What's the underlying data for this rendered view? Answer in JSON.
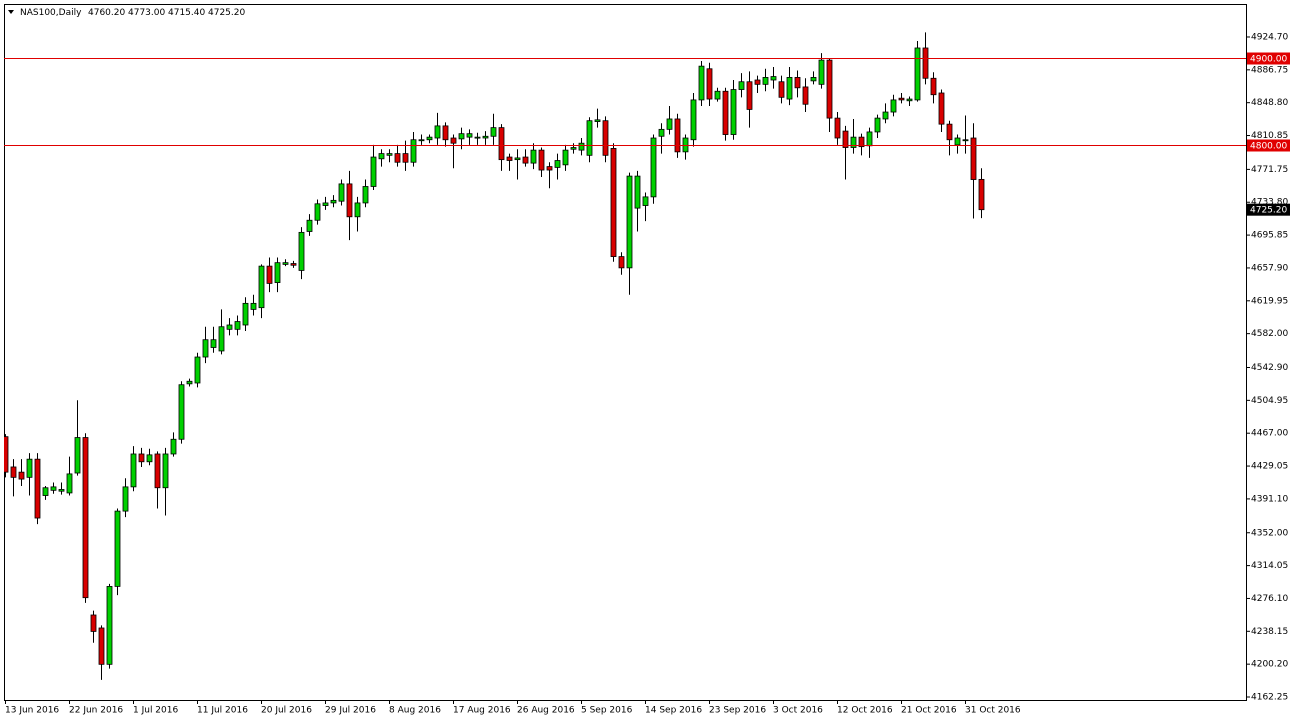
{
  "chart_data": {
    "type": "candlestick",
    "title": "NAS100,Daily",
    "ohlc_labels": [
      "4760.20",
      "4773.00",
      "4715.40",
      "4725.20"
    ],
    "categories": [
      "13 Jun 2016",
      null,
      null,
      null,
      null,
      null,
      null,
      null,
      "22 Jun 2016",
      null,
      null,
      null,
      null,
      null,
      null,
      null,
      "1 Jul 2016",
      null,
      null,
      null,
      null,
      null,
      null,
      null,
      "11 Jul 2016",
      null,
      null,
      null,
      null,
      null,
      null,
      null,
      "20 Jul 2016",
      null,
      null,
      null,
      null,
      null,
      null,
      null,
      "29 Jul 2016",
      null,
      null,
      null,
      null,
      null,
      null,
      null,
      "8 Aug 2016",
      null,
      null,
      null,
      null,
      null,
      null,
      null,
      "17 Aug 2016",
      null,
      null,
      null,
      null,
      null,
      null,
      null,
      "26 Aug 2016",
      null,
      null,
      null,
      null,
      null,
      null,
      null,
      "5 Sep 2016",
      null,
      null,
      null,
      null,
      null,
      null,
      null,
      "14 Sep 2016",
      null,
      null,
      null,
      null,
      null,
      null,
      null,
      "23 Sep 2016",
      null,
      null,
      null,
      null,
      null,
      null,
      null,
      "3 Oct 2016",
      null,
      null,
      null,
      null,
      null,
      null,
      null,
      "12 Oct 2016",
      null,
      null,
      null,
      null,
      null,
      null,
      null,
      "21 Oct 2016",
      null,
      null,
      null,
      null,
      null,
      null,
      null,
      "31 Oct 2016",
      null,
      null
    ],
    "open": [
      4463,
      4428,
      4422,
      4416,
      4437,
      4395,
      4401,
      4400,
      4398,
      4421,
      4462,
      4257,
      4242,
      4200,
      4290,
      4377,
      4405,
      4443,
      4434,
      4443,
      4404,
      4443,
      4460,
      4524,
      4525,
      4555,
      4566,
      4562,
      4587,
      4587,
      4592,
      4610,
      4612,
      4660,
      4641,
      4662,
      4663,
      4655,
      4700,
      4713,
      4730,
      4733,
      4735,
      4755,
      4717,
      4733,
      4752,
      4784,
      4788,
      4790,
      4790,
      4780,
      4805,
      4806,
      4808,
      4822,
      4808,
      4807,
      4809,
      4808,
      4808,
      4810,
      4820,
      4786,
      4783,
      4786,
      4779,
      4794,
      4775,
      4774,
      4777,
      4795,
      4794,
      4788,
      4827,
      4828,
      4796,
      4671,
      4658,
      4727,
      4730,
      4740,
      4810,
      4818,
      4830,
      4792,
      4806,
      4852,
      4888,
      4853,
      4862,
      4812,
      4864,
      4873,
      4875,
      4870,
      4875,
      4873,
      4853,
      4878,
      4867,
      4874,
      4870,
      4898,
      4831,
      4816,
      4797,
      4809,
      4799,
      4815,
      4830,
      4838,
      4854,
      4851,
      4852,
      4912,
      4877,
      4860,
      4824,
      4800,
      4805,
      4808,
      4760.2
    ],
    "high": [
      4466,
      4437,
      4437,
      4444,
      4444,
      4406,
      4410,
      4410,
      4440,
      4505,
      4467,
      4262,
      4245,
      4293,
      4380,
      4415,
      4452,
      4450,
      4449,
      4446,
      4450,
      4468,
      4527,
      4530,
      4560,
      4590,
      4590,
      4610,
      4600,
      4603,
      4624,
      4627,
      4662,
      4670,
      4670,
      4668,
      4666,
      4705,
      4720,
      4737,
      4740,
      4742,
      4760,
      4770,
      4740,
      4760,
      4800,
      4795,
      4795,
      4800,
      4805,
      4815,
      4812,
      4812,
      4837,
      4826,
      4812,
      4820,
      4818,
      4814,
      4816,
      4836,
      4824,
      4790,
      4795,
      4795,
      4802,
      4797,
      4780,
      4790,
      4800,
      4802,
      4808,
      4832,
      4842,
      4833,
      4802,
      4676,
      4768,
      4770,
      4745,
      4812,
      4825,
      4845,
      4836,
      4812,
      4860,
      4897,
      4895,
      4866,
      4866,
      4875,
      4883,
      4885,
      4880,
      4888,
      4890,
      4880,
      4890,
      4886,
      4877,
      4885,
      4906,
      4900,
      4838,
      4822,
      4830,
      4813,
      4820,
      4835,
      4848,
      4858,
      4860,
      4856,
      4920,
      4930,
      4884,
      4864,
      4828,
      4812,
      4834,
      4825,
      4773
    ],
    "low": [
      4416,
      4394,
      4406,
      4395,
      4362,
      4390,
      4397,
      4396,
      4395,
      4418,
      4271,
      4225,
      4182,
      4195,
      4280,
      4370,
      4400,
      4428,
      4430,
      4380,
      4372,
      4440,
      4455,
      4521,
      4520,
      4548,
      4560,
      4558,
      4580,
      4580,
      4585,
      4603,
      4600,
      4630,
      4630,
      4660,
      4658,
      4645,
      4695,
      4708,
      4725,
      4728,
      4730,
      4690,
      4700,
      4728,
      4748,
      4775,
      4780,
      4775,
      4770,
      4775,
      4800,
      4802,
      4800,
      4798,
      4773,
      4795,
      4800,
      4800,
      4800,
      4800,
      4770,
      4770,
      4760,
      4775,
      4772,
      4763,
      4750,
      4760,
      4770,
      4790,
      4788,
      4780,
      4820,
      4780,
      4665,
      4650,
      4627,
      4700,
      4712,
      4732,
      4790,
      4812,
      4785,
      4783,
      4798,
      4845,
      4845,
      4850,
      4805,
      4806,
      4855,
      4820,
      4860,
      4862,
      4865,
      4848,
      4846,
      4855,
      4838,
      4870,
      4865,
      4815,
      4800,
      4760,
      4790,
      4788,
      4785,
      4808,
      4825,
      4833,
      4848,
      4845,
      4850,
      4870,
      4848,
      4815,
      4788,
      4790,
      4790,
      4715,
      4715.4
    ],
    "close": [
      4422,
      4416,
      4414,
      4437,
      4369,
      4404,
      4405,
      4402,
      4420,
      4462,
      4277,
      4238,
      4200,
      4290,
      4377,
      4405,
      4443,
      4434,
      4442,
      4404,
      4443,
      4460,
      4523,
      4527,
      4555,
      4575,
      4575,
      4590,
      4592,
      4596,
      4617,
      4617,
      4660,
      4640,
      4664,
      4664,
      4661,
      4699,
      4713,
      4732,
      4733,
      4736,
      4755,
      4717,
      4733,
      4752,
      4786,
      4790,
      4790,
      4780,
      4780,
      4806,
      4806,
      4809,
      4822,
      4806,
      4802,
      4813,
      4813,
      4809,
      4810,
      4820,
      4783,
      4782,
      4785,
      4779,
      4794,
      4771,
      4771,
      4782,
      4794,
      4797,
      4802,
      4828,
      4829,
      4788,
      4671,
      4658,
      4764,
      4764,
      4740,
      4808,
      4818,
      4830,
      4792,
      4808,
      4852,
      4891,
      4853,
      4862,
      4812,
      4864,
      4873,
      4841,
      4870,
      4878,
      4879,
      4855,
      4878,
      4866,
      4847,
      4878,
      4898,
      4831,
      4808,
      4797,
      4809,
      4798,
      4815,
      4831,
      4838,
      4852,
      4852,
      4853,
      4912,
      4877,
      4858,
      4824,
      4806,
      4808,
      4806,
      4760,
      4725.2
    ],
    "up_color": "#00d000",
    "down_color": "#d80000",
    "ylim": [
      4158.8,
      4962.8
    ],
    "yticks": [
      {
        "value": 4924.7,
        "label": "4924.70"
      },
      {
        "value": 4886.75,
        "label": "4886.75"
      },
      {
        "value": 4848.8,
        "label": "4848.80"
      },
      {
        "value": 4810.85,
        "label": "4810.85"
      },
      {
        "value": 4771.75,
        "label": "4771.75"
      },
      {
        "value": 4733.8,
        "label": "4733.80"
      },
      {
        "value": 4695.85,
        "label": "4695.85"
      },
      {
        "value": 4657.9,
        "label": "4657.90"
      },
      {
        "value": 4619.95,
        "label": "4619.95"
      },
      {
        "value": 4582,
        "label": "4582.00"
      },
      {
        "value": 4542.9,
        "label": "4542.90"
      },
      {
        "value": 4504.95,
        "label": "4504.95"
      },
      {
        "value": 4467,
        "label": "4467.00"
      },
      {
        "value": 4429.05,
        "label": "4429.05"
      },
      {
        "value": 4391.1,
        "label": "4391.10"
      },
      {
        "value": 4352,
        "label": "4352.00"
      },
      {
        "value": 4314.05,
        "label": "4314.05"
      },
      {
        "value": 4276.1,
        "label": "4276.10"
      },
      {
        "value": 4238.15,
        "label": "4238.15"
      },
      {
        "value": 4200.2,
        "label": "4200.20"
      },
      {
        "value": 4162.25,
        "label": "4162.25"
      }
    ],
    "hlines": [
      {
        "value": 4900,
        "label": "4900.00",
        "color": "#e00000"
      },
      {
        "value": 4800,
        "label": "4800.00",
        "color": "#e00000"
      }
    ],
    "price_marker": {
      "value": 4725.2,
      "label": "4725.20"
    }
  }
}
